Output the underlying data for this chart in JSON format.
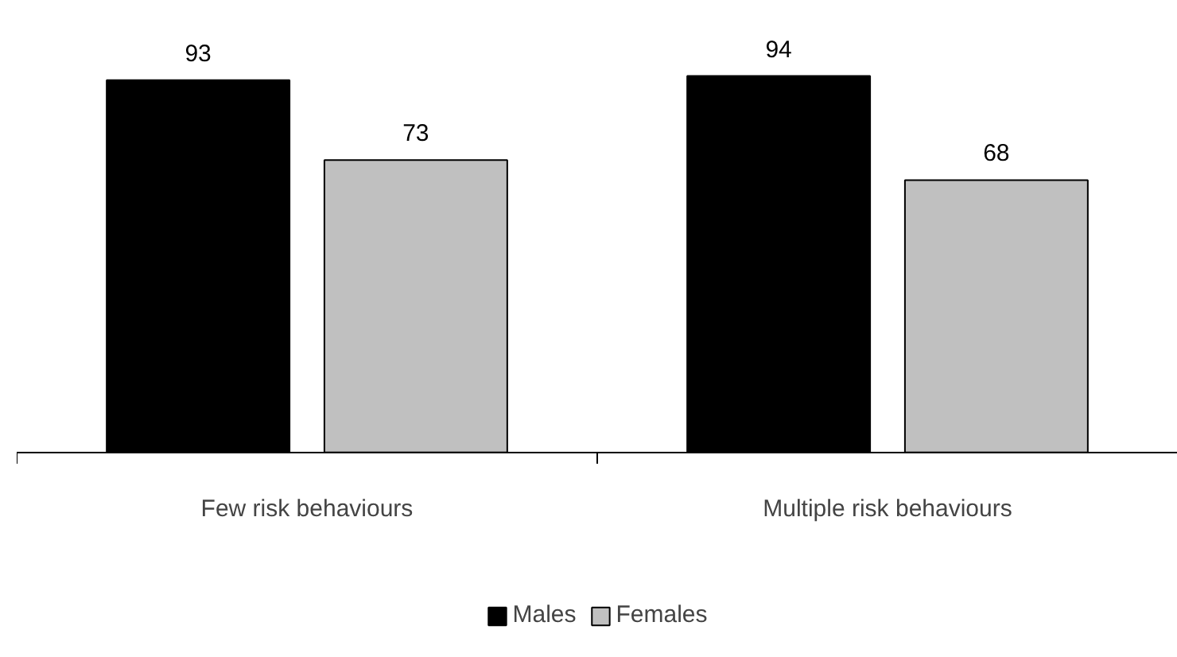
{
  "chart_data": {
    "type": "bar",
    "categories": [
      "Few risk behaviours",
      "Multiple risk behaviours"
    ],
    "series": [
      {
        "name": "Males",
        "color": "#000000",
        "values": [
          93,
          94
        ]
      },
      {
        "name": "Females",
        "color": "#c0c0c0",
        "values": [
          73,
          68
        ]
      }
    ],
    "data_labels": true,
    "legend": "bottom"
  }
}
